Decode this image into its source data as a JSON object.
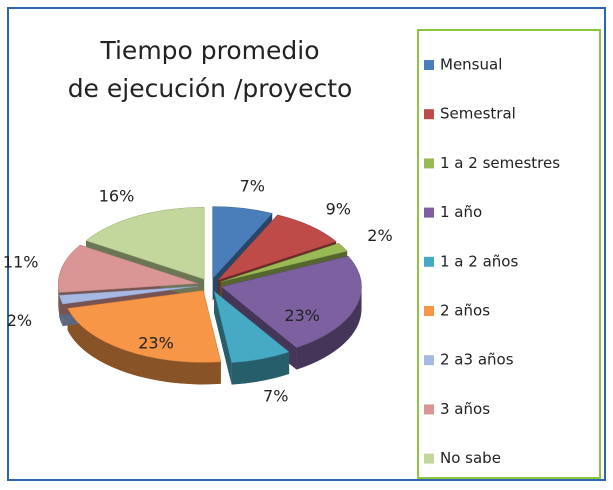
{
  "chart_data": {
    "type": "pie",
    "title": [
      "Tiempo promedio",
      "de ejecución /proyecto"
    ],
    "categories": [
      "Mensual",
      "Semestral",
      "1 a 2 semestres",
      "1 año",
      "1 a 2 años",
      "2 años",
      "2 a3 años",
      "3 años",
      "No sabe"
    ],
    "values": [
      7,
      9,
      2,
      23,
      7,
      23,
      2,
      11,
      16
    ],
    "value_labels": [
      "7%",
      "9%",
      "2%",
      "23%",
      "7%",
      "23%",
      "2%",
      "11%",
      "16%"
    ],
    "colors": [
      "#4a7ebb",
      "#be4b48",
      "#98b954",
      "#7d60a0",
      "#46aac5",
      "#f79646",
      "#a7b9e3",
      "#d99694",
      "#c3d69b"
    ],
    "legend": "right"
  }
}
